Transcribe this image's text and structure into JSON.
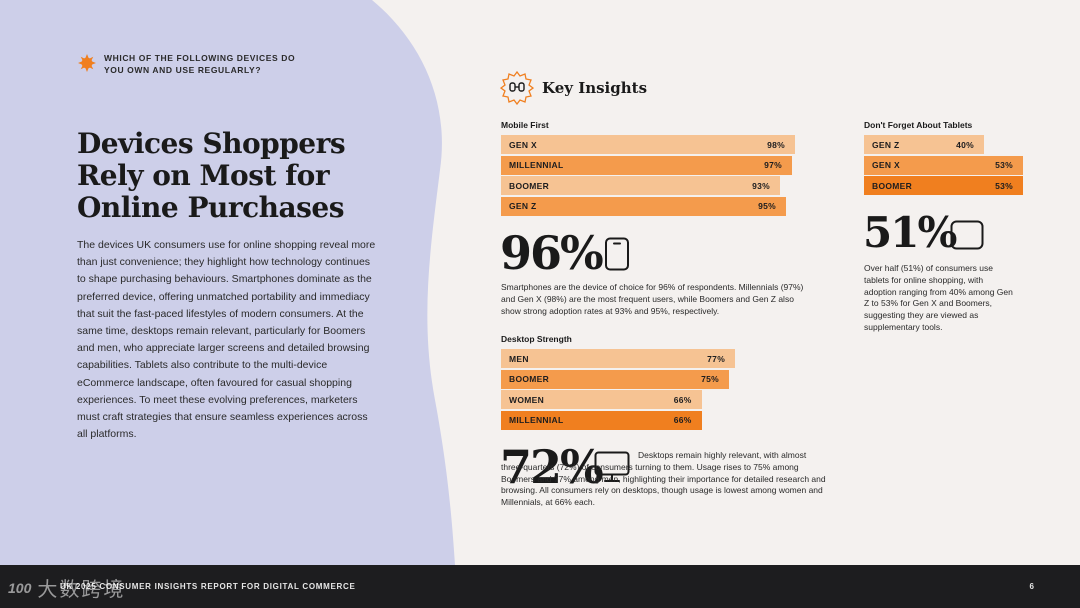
{
  "question": "WHICH OF THE FOLLOWING DEVICES DO YOU OWN AND USE REGULARLY?",
  "title": "Devices Shoppers Rely on Most for Online Purchases",
  "body": "The devices UK consumers use for online shopping reveal more than just convenience; they highlight how technology continues to shape purchasing behaviours. Smartphones dominate as the preferred device, offering unmatched portability and immediacy that suit the fast-paced lifestyles of modern consumers. At the same time, desktops remain relevant, particularly for Boomers and men, who appreciate larger screens and detailed browsing capabilities. Tablets also contribute to the multi-device eCommerce landscape, often favoured for casual shopping experiences. To meet these evolving preferences, marketers must craft strategies that ensure seamless experiences across all platforms.",
  "key_insights": "Key Insights",
  "chart_data": [
    {
      "type": "bar",
      "title": "Mobile First",
      "categories": [
        "GEN X",
        "MILLENNIAL",
        "BOOMER",
        "GEN Z"
      ],
      "values": [
        98,
        97,
        93,
        95
      ],
      "labels": [
        "98%",
        "97%",
        "93%",
        "95%"
      ],
      "colors": [
        "#f6c393",
        "#f49b4c",
        "#f6c393",
        "#f49b4c"
      ]
    },
    {
      "type": "bar",
      "title": "Desktop Strength",
      "categories": [
        "MEN",
        "BOOMER",
        "WOMEN",
        "MILLENNIAL"
      ],
      "values": [
        77,
        75,
        66,
        66
      ],
      "labels": [
        "77%",
        "75%",
        "66%",
        "66%"
      ],
      "colors": [
        "#f6c393",
        "#f49b4c",
        "#f6c393",
        "#f07f1f"
      ]
    },
    {
      "type": "bar",
      "title": "Don't Forget About Tablets",
      "categories": [
        "GEN Z",
        "GEN X",
        "BOOMER"
      ],
      "values": [
        40,
        53,
        53
      ],
      "labels": [
        "40%",
        "53%",
        "53%"
      ],
      "colors": [
        "#f6c393",
        "#f49b4c",
        "#f07f1f"
      ]
    }
  ],
  "mobile": {
    "stat": "96%",
    "icon": "smartphone-icon",
    "text": "Smartphones are the device of choice for 96% of respondents. Millennials (97%) and Gen X (98%) are the most frequent users, while Boomers and Gen Z also show strong adoption rates at 93% and 95%, respectively."
  },
  "desktop": {
    "stat": "72%",
    "icon": "desktop-icon",
    "text": "Desktops remain highly relevant, with almost three-quarters (72%) of consumers turning to them. Usage rises to 75% among Boomers and 77% among men, highlighting their importance for detailed research and browsing. All consumers rely on desktops, though usage is lowest among women and Millennials, at 66% each."
  },
  "tablet": {
    "stat": "51%",
    "icon": "tablet-icon",
    "text": "Over half (51%) of consumers use tablets for online shopping, with adoption ranging from 40% among Gen Z to 53% for Gen X and Boomers, suggesting they are viewed as supplementary tools."
  },
  "footer": {
    "text": "UK 2025 CONSUMER INSIGHTS REPORT FOR DIGITAL COMMERCE",
    "page": "6",
    "watermark_logo": "100",
    "watermark_text": "大数跨境"
  }
}
